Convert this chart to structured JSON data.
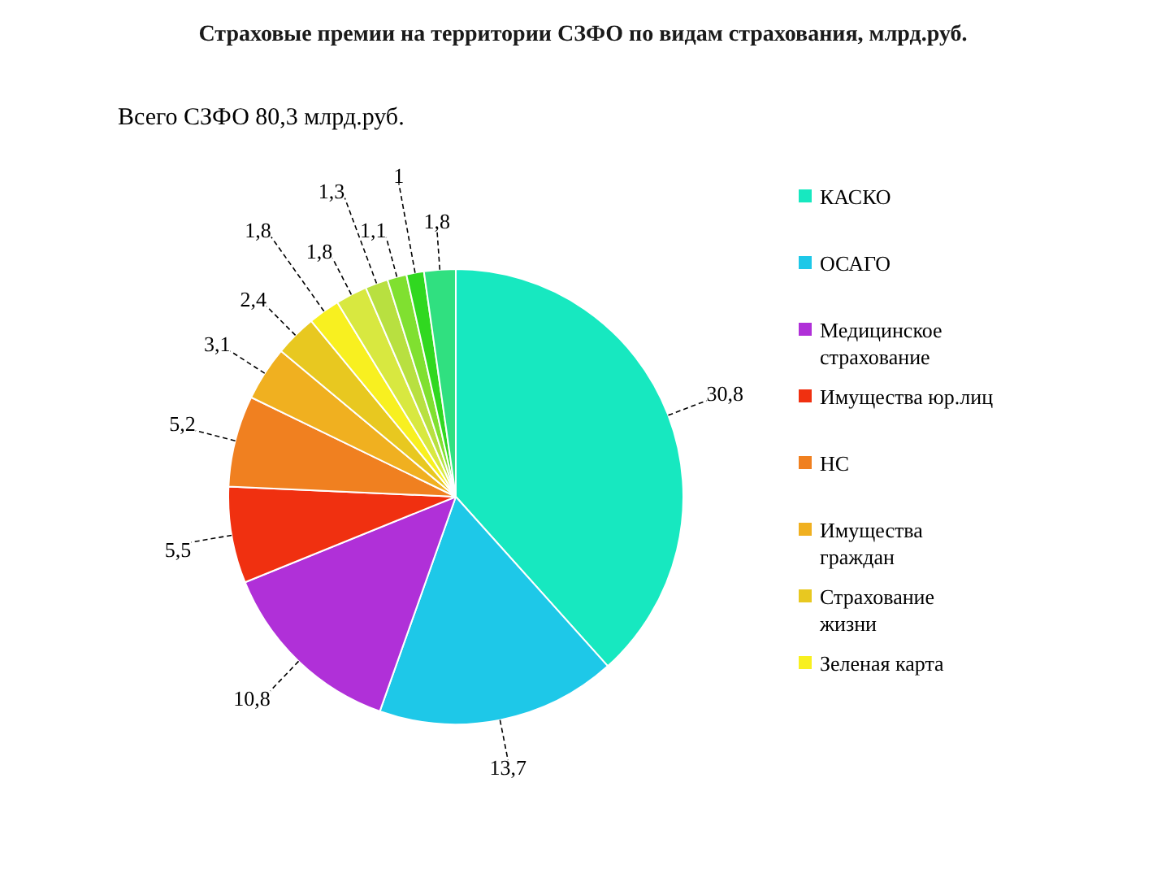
{
  "chart_data": {
    "type": "pie",
    "title": "Страховые премии  на территории СЗФО по видам страхования, млрд.руб.",
    "annotations": [
      "Всего СЗФО  80,3 млрд.руб."
    ],
    "categories": [
      "КАСКО",
      "ОСАГО",
      "Медицинское страхование",
      "Имущества юр.лиц",
      "НС",
      "Имущества граждан",
      "Страхование жизни",
      "Зеленая карта",
      null,
      null,
      null,
      null,
      null
    ],
    "values": [
      30.8,
      13.7,
      10.8,
      5.5,
      5.2,
      3.1,
      2.4,
      1.8,
      1.8,
      1.3,
      1.1,
      1,
      1.8
    ],
    "colors": [
      "#17e8c0",
      "#1ec8e8",
      "#b030d8",
      "#f03010",
      "#f08020",
      "#f0b020",
      "#e8c820",
      "#f8f020",
      "#d8e840",
      "#b8e040",
      "#80e030",
      "#30d820",
      "#30e080"
    ],
    "value_labels": [
      "30,8",
      "13,7",
      "10,8",
      "5,5",
      "5,2",
      "3,1",
      "2,4",
      "1,8",
      "1,8",
      "1,3",
      "1,1",
      "1",
      "1,8"
    ],
    "legend": "right"
  }
}
